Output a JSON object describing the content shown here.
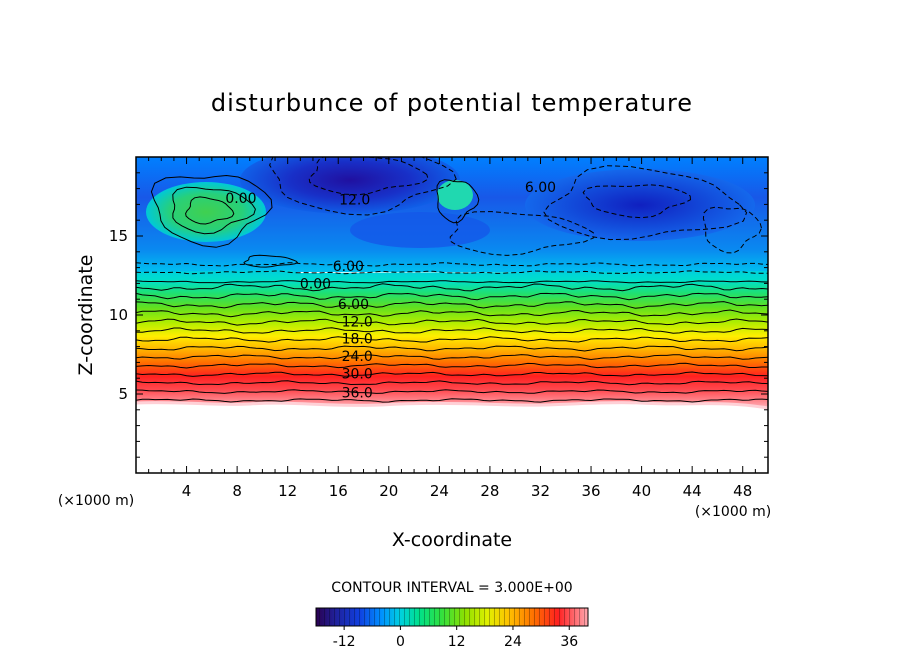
{
  "chart_data": {
    "type": "heatmap",
    "title": "disturbunce of potential temperature",
    "xlabel": "X-coordinate",
    "ylabel": "Z-coordinate",
    "x_unit": "(×1000 m)",
    "y_unit": "(×1000 m)",
    "xlim": [
      0,
      50
    ],
    "ylim": [
      0,
      20
    ],
    "x_ticks": [
      4,
      8,
      12,
      16,
      20,
      24,
      28,
      32,
      36,
      40,
      44,
      48
    ],
    "y_ticks": [
      5,
      10,
      15
    ],
    "contour_interval_text": "CONTOUR INTERVAL = 3.000E+00",
    "contour_labels": [
      {
        "text": "36.0",
        "x": 17.5,
        "z": 5.1
      },
      {
        "text": "30.0",
        "x": 17.5,
        "z": 6.3
      },
      {
        "text": "24.0",
        "x": 17.5,
        "z": 7.4
      },
      {
        "text": "18.0",
        "x": 17.5,
        "z": 8.5
      },
      {
        "text": "12.0",
        "x": 17.5,
        "z": 9.6
      },
      {
        "text": "6.00",
        "x": 17.2,
        "z": 10.7
      },
      {
        "text": "0.00",
        "x": 14.2,
        "z": 12.0
      },
      {
        "text": "6.00",
        "x": 16.8,
        "z": 13.1
      },
      {
        "text": "12.0",
        "x": 17.3,
        "z": 17.3
      },
      {
        "text": "6.00",
        "x": 32.0,
        "z": 18.1
      },
      {
        "text": "0.00",
        "x": 8.3,
        "z": 17.4
      }
    ],
    "field_notes": "Potential temperature disturbance: about 40 near z=4.5 km decreasing roughly 3 per 0.55 km to 0 near z=12 km; values from -3 to -16 above 13 km with a warm anomaly near x=6 km, z=16.5 km; no data below z≈4.3 km.",
    "colorbar": {
      "min": -18,
      "max": 40,
      "tick_values": [
        -12,
        0,
        12,
        24,
        36
      ],
      "tick_labels": [
        "-12",
        "0",
        "12",
        "24",
        "36"
      ]
    }
  }
}
